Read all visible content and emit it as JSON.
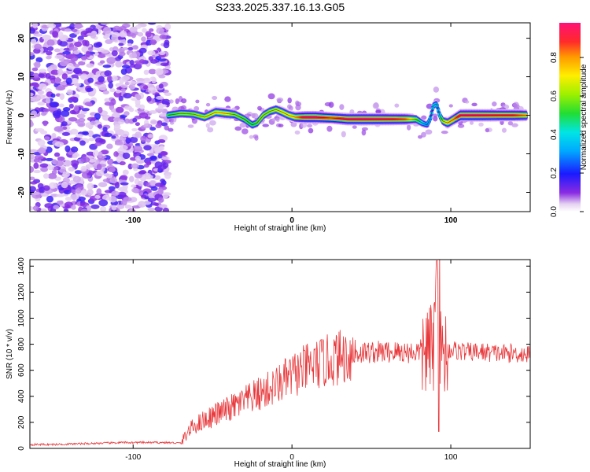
{
  "title": "S233.2025.337.16.13.G05",
  "chart_data": [
    {
      "type": "heatmap",
      "xlabel": "Height of straight line (km)",
      "ylabel": "Frequency (Hz)",
      "xlim": [
        -165,
        150
      ],
      "ylim": [
        -25,
        24
      ],
      "xticks": [
        -100,
        0,
        100
      ],
      "yticks": [
        -20,
        -10,
        0,
        10,
        20
      ],
      "xtick_labels": [
        "-100",
        "0",
        "100"
      ],
      "ytick_labels": [
        "-20",
        "-10",
        "0",
        "10",
        "20"
      ],
      "noise_region_x": [
        -165,
        -78
      ],
      "ridge": {
        "x": [
          -78,
          -70,
          -62,
          -55,
          -48,
          -42,
          -36,
          -30,
          -25,
          -22,
          -18,
          -14,
          -10,
          -6,
          -2,
          2,
          8,
          15,
          25,
          35,
          45,
          55,
          65,
          72,
          78,
          82,
          85,
          87,
          89,
          91,
          93,
          95,
          98,
          102,
          106,
          110,
          120,
          130,
          140,
          148
        ],
        "freq": [
          0,
          0.5,
          0.3,
          -0.5,
          0.8,
          0.5,
          0.2,
          -1.0,
          -2.5,
          -2.0,
          0,
          1.0,
          1.5,
          0.8,
          0,
          -0.5,
          -0.5,
          -0.5,
          -0.7,
          -1.0,
          -1.0,
          -1.0,
          -1.0,
          -1.0,
          -1.0,
          -2.0,
          -2.5,
          -1.0,
          2.5,
          3.0,
          0,
          -1.5,
          -2.0,
          -1.0,
          0,
          0,
          0,
          0,
          0,
          0
        ],
        "amplitude": [
          0.5,
          0.6,
          0.6,
          0.65,
          0.7,
          0.75,
          0.6,
          0.55,
          0.5,
          0.55,
          0.6,
          0.6,
          0.65,
          0.7,
          0.7,
          0.75,
          0.95,
          0.97,
          0.85,
          0.95,
          0.97,
          0.95,
          0.9,
          0.85,
          0.6,
          0.4,
          0.3,
          0.35,
          0.4,
          0.35,
          0.4,
          0.6,
          0.75,
          0.8,
          0.95,
          0.97,
          0.95,
          0.9,
          0.9,
          0.8
        ]
      },
      "colorbar": {
        "label": "Normalized spectral amplitude",
        "range": [
          0,
          0.98
        ],
        "ticks": [
          0.0,
          0.2,
          0.4,
          0.6,
          0.8
        ],
        "tick_labels": [
          "0.0",
          "0.2",
          "0.4",
          "0.6",
          "0.8"
        ]
      }
    },
    {
      "type": "line",
      "xlabel": "Height of straight line (km)",
      "ylabel": "SNR (10 * v/v)",
      "xlim": [
        -165,
        150
      ],
      "ylim": [
        0,
        1450
      ],
      "xticks": [
        -100,
        0,
        100
      ],
      "yticks": [
        0,
        200,
        400,
        600,
        800,
        1000,
        1200,
        1400
      ],
      "xtick_labels": [
        "-100",
        "0",
        "100"
      ],
      "ytick_labels": [
        "0",
        "200",
        "400",
        "600",
        "800",
        "1000",
        "1200",
        "1400"
      ],
      "color": "#e8383b",
      "series": [
        {
          "x": [
            -165,
            -150,
            -135,
            -120,
            -105,
            -90,
            -80,
            -70,
            -66,
            -62,
            -55,
            -48,
            -40,
            -30,
            -20,
            -10,
            0,
            10,
            20,
            30,
            40,
            50,
            60,
            70,
            78,
            84,
            88,
            90,
            92,
            94,
            96,
            100,
            110,
            120,
            130,
            140,
            150
          ],
          "values": [
            30,
            30,
            35,
            40,
            45,
            45,
            45,
            40,
            120,
            170,
            220,
            260,
            300,
            360,
            420,
            480,
            560,
            620,
            660,
            700,
            730,
            740,
            740,
            740,
            740,
            760,
            740,
            900,
            1440,
            650,
            740,
            760,
            740,
            740,
            730,
            730,
            720
          ]
        }
      ]
    }
  ]
}
